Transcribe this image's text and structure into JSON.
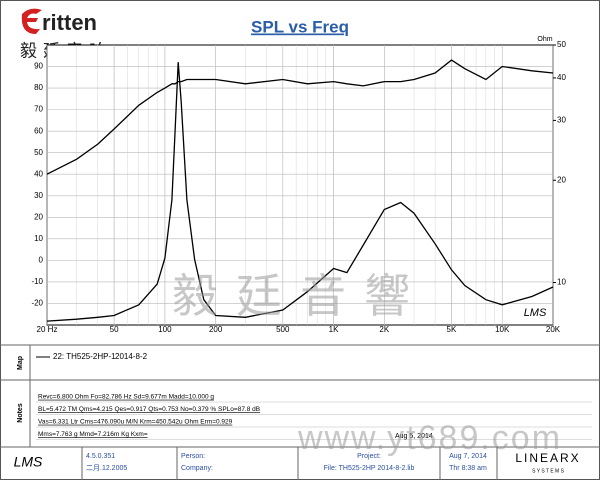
{
  "chart_data": {
    "type": "line",
    "title": "SPL vs Freq",
    "x": [
      20,
      30,
      40,
      50,
      70,
      90,
      100,
      110,
      115,
      120,
      125,
      135,
      150,
      170,
      200,
      300,
      500,
      700,
      1000,
      1200,
      1500,
      2000,
      2500,
      3000,
      4000,
      5000,
      6000,
      8000,
      10000,
      15000,
      20000
    ],
    "series": [
      {
        "color": "#000000",
        "axis": "y",
        "values": [
          40,
          47,
          54,
          61,
          72,
          78,
          80,
          82,
          82,
          83,
          83,
          84,
          84,
          84,
          84,
          82,
          84,
          82,
          83,
          82,
          81,
          83,
          83,
          84,
          87,
          93,
          89,
          84,
          90,
          88,
          87
        ]
      },
      {
        "color": "#000000",
        "axis": "y2",
        "values": [
          7.7,
          7.8,
          7.9,
          8,
          8.6,
          9.9,
          11.8,
          17.5,
          28,
          44.5,
          34,
          17.5,
          11.7,
          8.9,
          8,
          7.9,
          8.3,
          9.4,
          11,
          10.7,
          12.9,
          16.4,
          17.2,
          16,
          13,
          10.9,
          9.8,
          8.9,
          8.6,
          9.1,
          9.7
        ]
      }
    ],
    "xlim": [
      20,
      20000
    ],
    "xlog": true,
    "xticks": [
      {
        "value": 20,
        "label": "20 Hz"
      },
      50,
      100,
      200,
      500,
      {
        "value": 1000,
        "label": "1K"
      },
      {
        "value": 2000,
        "label": "2K"
      },
      {
        "value": 5000,
        "label": "5K"
      },
      {
        "value": 10000,
        "label": "10K"
      },
      {
        "value": 20000,
        "label": "20K"
      }
    ],
    "ylim": [
      -30,
      100
    ],
    "yticks": [
      -20,
      -10,
      0,
      10,
      20,
      30,
      40,
      50,
      60,
      70,
      80,
      90
    ],
    "y2lim": [
      7.5,
      50
    ],
    "y2log": true,
    "y2ticks": [
      10,
      20,
      30,
      40,
      50
    ],
    "y2label": "Ohm",
    "grid": true
  },
  "logo": {
    "name": "ritten",
    "chinese": "毅廷音响"
  },
  "plot_logo": "LMS",
  "watermark": {
    "chinese": "毅廷音響",
    "url": "www.yt689.com"
  },
  "map": {
    "section": "Map",
    "legend": "22: TH525-2HP-1",
    "date": "2014-8-2"
  },
  "notes": {
    "section": "Notes",
    "lines": [
      "Revc=6.800 Ohm  Fo=82.786 Hz  Sd=9.677m  Madd=10.000 g",
      "BL=5.472 TM  Qms=4.215  Qes=0.917  Qts=0.753  No=0.379 %  SPLo=87.8 dB",
      "Vas=6.331 Ltr  Cms=476.090u M/N  Krm=450.542u Ohm  Erm=0.929",
      "Mms=7.763 g  Mmd=7.216m Kg  Kxm="
    ],
    "stamp": "Aug 5, 2014"
  },
  "footer": {
    "logo": "LMS",
    "version": "4.5.0.351",
    "build": "二月.12.2005",
    "person": "Person:",
    "company": "Company:",
    "project": "Project:",
    "file": "File: TH525-2HP  2014-8-2.lib",
    "date": "Aug  7, 2014",
    "time": "Thr  8:38 am",
    "brand": "LINEARX",
    "brand_sub": "S Y S T E M S"
  }
}
